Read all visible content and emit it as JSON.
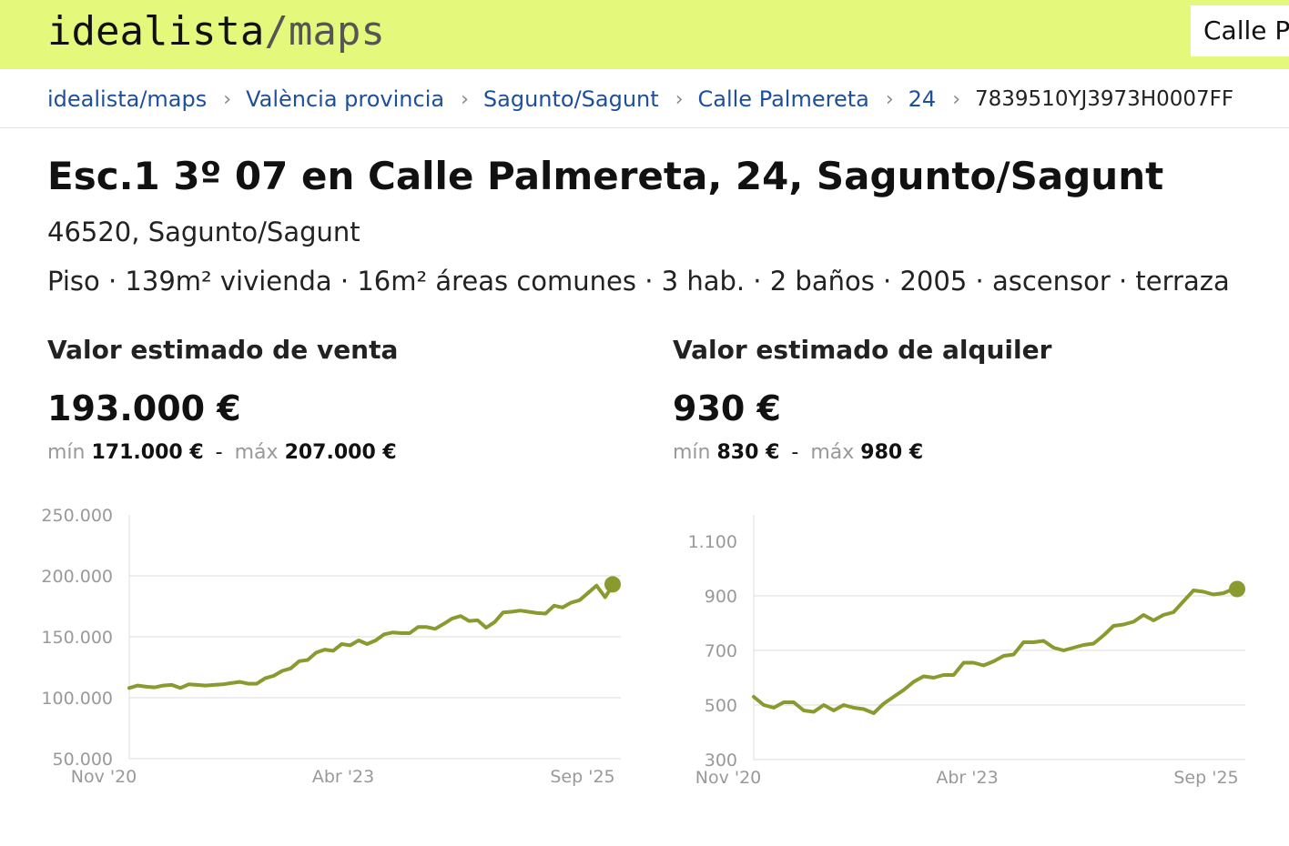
{
  "header": {
    "logo_main": "idealista",
    "logo_slash": "/",
    "logo_maps": "maps",
    "search_value": "Calle Palmereta"
  },
  "breadcrumb": {
    "items": [
      "idealista/maps",
      "València provincia",
      "Sagunto/Sagunt",
      "Calle Palmereta",
      "24"
    ],
    "current": "7839510YJ3973H0007FF"
  },
  "property": {
    "title": "Esc.1 3º 07 en Calle Palmereta, 24, Sagunto/Sagunt",
    "address": "46520, Sagunto/Sagunt",
    "features": "Piso · 139m² vivienda · 16m² áreas comunes · 3 hab. · 2 baños · 2005 · ascensor · terraza"
  },
  "sale": {
    "title": "Valor estimado de venta",
    "value": "193.000 €",
    "min_label": "mín",
    "min_value": "171.000 €",
    "dash": "-",
    "max_label": "máx",
    "max_value": "207.000 €"
  },
  "rent": {
    "title": "Valor estimado de alquiler",
    "value": "930 €",
    "min_label": "mín",
    "min_value": "830 €",
    "dash": "-",
    "max_label": "máx",
    "max_value": "980 €"
  },
  "colors": {
    "topbar": "#e4f87b",
    "line": "#8a9a2e",
    "link": "#1d4f9c"
  },
  "chart_data": [
    {
      "type": "line",
      "title": "",
      "xlabel": "",
      "ylabel": "",
      "x_ticks": [
        "Nov '20",
        "Abr '23",
        "Sep '25"
      ],
      "y_ticks": [
        "250.000",
        "200.000",
        "150.000",
        "100.000",
        "50.000"
      ],
      "ylim": [
        50000,
        250000
      ],
      "grid": true,
      "series": [
        {
          "values": [
            108000,
            110000,
            109000,
            108500,
            110000,
            110500,
            108000,
            111000,
            110500,
            110000,
            110500,
            111000,
            112000,
            113000,
            111500,
            111500,
            116000,
            118000,
            122000,
            124000,
            130000,
            131000,
            137000,
            139500,
            138500,
            144000,
            143000,
            147000,
            144000,
            147000,
            152000,
            153500,
            153000,
            153000,
            158000,
            158000,
            156500,
            160500,
            165000,
            167000,
            163000,
            163500,
            157500,
            162000,
            170000,
            170500,
            171500,
            170500,
            169500,
            169000,
            175500,
            174000,
            178000,
            180000,
            186000,
            192000,
            182500,
            193000
          ]
        }
      ],
      "endpoint": 193000
    },
    {
      "type": "line",
      "title": "",
      "xlabel": "",
      "ylabel": "",
      "x_ticks": [
        "Nov '20",
        "Abr '23",
        "Sep '25"
      ],
      "y_ticks": [
        "1.100",
        "900",
        "700",
        "500",
        "300"
      ],
      "ylim": [
        300,
        1100
      ],
      "grid": true,
      "series": [
        {
          "values": [
            530,
            500,
            490,
            510,
            510,
            480,
            475,
            500,
            480,
            500,
            490,
            485,
            470,
            505,
            530,
            555,
            585,
            605,
            600,
            610,
            610,
            655,
            655,
            645,
            660,
            680,
            685,
            730,
            730,
            735,
            710,
            700,
            710,
            720,
            725,
            755,
            790,
            795,
            805,
            830,
            810,
            830,
            840,
            880,
            920,
            915,
            905,
            910,
            925
          ]
        }
      ],
      "endpoint": 925
    }
  ]
}
